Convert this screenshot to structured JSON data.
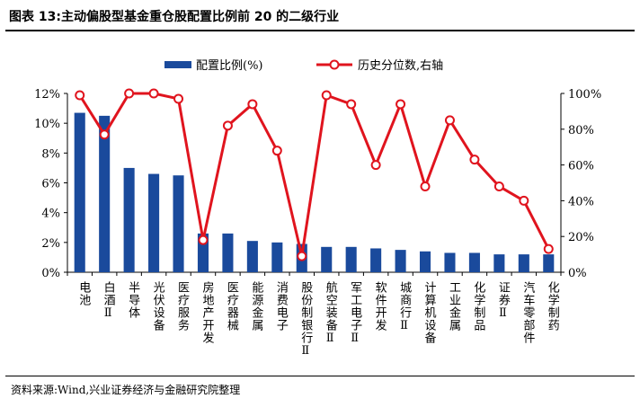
{
  "title": "图表 13:主动偏股型基金重仓股配置比例前 20 的二级行业",
  "source": "资料来源:Wind,兴业证券经济与金融研究院整理",
  "chart_data": {
    "type": "bar",
    "categories": [
      "电池",
      "白酒Ⅱ",
      "半导体",
      "光伏设备",
      "医疗服务",
      "房地产开发",
      "医疗器械",
      "能源金属",
      "消费电子",
      "股份制银行Ⅱ",
      "航空装备Ⅱ",
      "军工电子Ⅱ",
      "软件开发",
      "城商行Ⅱ",
      "计算机设备",
      "工业金属",
      "化学制品",
      "证券Ⅱ",
      "汽车零部件",
      "化学制药"
    ],
    "series": [
      {
        "name": "配置比例(%)",
        "type": "bar",
        "axis": "left",
        "color": "#1a4a9c",
        "values": [
          10.7,
          10.5,
          7.0,
          6.6,
          6.5,
          2.6,
          2.6,
          2.1,
          2.0,
          1.9,
          1.7,
          1.7,
          1.6,
          1.5,
          1.4,
          1.3,
          1.3,
          1.2,
          1.2,
          1.2
        ]
      },
      {
        "name": "历史分位数,右轴",
        "type": "line",
        "axis": "right",
        "color": "#e0141e",
        "values": [
          99,
          77,
          100,
          100,
          97,
          18,
          82,
          94,
          68,
          9,
          99,
          94,
          60,
          94,
          48,
          85,
          63,
          48,
          40,
          13
        ]
      }
    ],
    "y_left": {
      "min": 0,
      "max": 12,
      "step": 2,
      "ticks": [
        "0%",
        "2%",
        "4%",
        "6%",
        "8%",
        "10%",
        "12%"
      ]
    },
    "y_right": {
      "min": 0,
      "max": 100,
      "step": 20,
      "ticks": [
        "0%",
        "20%",
        "40%",
        "60%",
        "80%",
        "100%"
      ]
    },
    "legend": {
      "position": "top-center"
    },
    "grid": false
  }
}
